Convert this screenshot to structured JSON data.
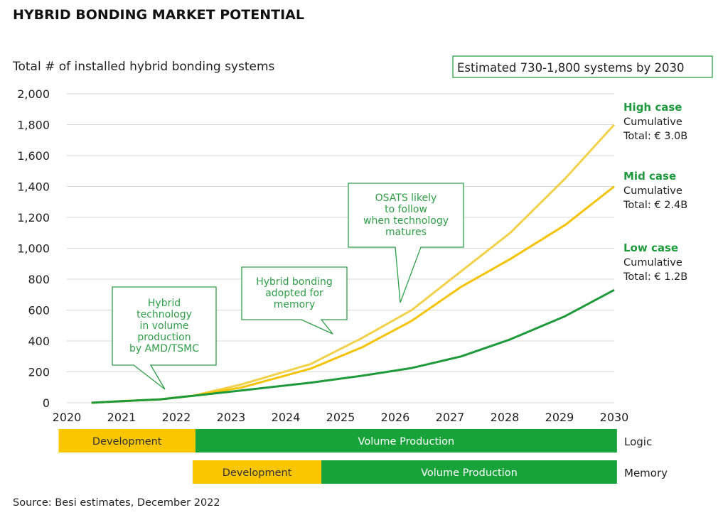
{
  "title": "HYBRID BONDING MARKET POTENTIAL",
  "source": "Source: Besi estimates, December 2022",
  "badge": "Estimated 730-1,800 systems by 2030",
  "colors": {
    "high": "#f2d14a",
    "mid": "#f4c300",
    "low": "#1e9a3a",
    "development": "#f9c600",
    "volume": "#18a33a",
    "note": "#2e9e47"
  },
  "chart_data": {
    "type": "line",
    "ylabel": "Total # of installed hybrid bonding systems",
    "xlim": [
      2020,
      2030
    ],
    "ylim": [
      0,
      2000
    ],
    "x_ticks": [
      "2020",
      "2021",
      "2022",
      "2023",
      "2024",
      "2025",
      "2026",
      "2027",
      "2028",
      "2029",
      "2030"
    ],
    "y_ticks": [
      "0",
      "200",
      "400",
      "600",
      "800",
      "1,000",
      "1,200",
      "1,400",
      "1,600",
      "1,800",
      "2,000"
    ],
    "grid": true,
    "series": [
      {
        "name": "High case",
        "x": [
          2020.45,
          2021,
          2021.7,
          2022.3,
          2023.2,
          2024.45,
          2025.4,
          2026.3,
          2027.2,
          2028.1,
          2029.1,
          2030
        ],
        "y": [
          0,
          10,
          22,
          45,
          120,
          250,
          420,
          600,
          850,
          1100,
          1450,
          1800
        ]
      },
      {
        "name": "Mid case",
        "x": [
          2020.45,
          2021,
          2021.7,
          2022.3,
          2023.2,
          2024.45,
          2025.4,
          2026.3,
          2027.2,
          2028.1,
          2029.1,
          2030
        ],
        "y": [
          0,
          10,
          22,
          45,
          100,
          220,
          360,
          530,
          750,
          930,
          1150,
          1400
        ]
      },
      {
        "name": "Low case",
        "x": [
          2020.45,
          2021,
          2021.7,
          2022.3,
          2023.2,
          2024.45,
          2025.4,
          2026.3,
          2027.2,
          2028.1,
          2029.1,
          2030
        ],
        "y": [
          0,
          10,
          22,
          45,
          80,
          130,
          175,
          225,
          300,
          410,
          560,
          730
        ]
      }
    ],
    "case_labels": [
      {
        "title": "High case",
        "line1": "Cumulative",
        "line2": "Total: € 3.0B"
      },
      {
        "title": "Mid case",
        "line1": "Cumulative",
        "line2": "Total: € 2.4B"
      },
      {
        "title": "Low case",
        "line1": "Cumulative",
        "line2": "Total: € 1.2B"
      }
    ],
    "annotations": [
      {
        "lines": [
          "Hybrid",
          "technology",
          "in volume",
          "production",
          "by AMD/TSMC"
        ],
        "x": 2021.9,
        "y": 80
      },
      {
        "lines": [
          "Hybrid bonding",
          "adopted for",
          "memory"
        ],
        "x": 2024.5,
        "y": 440
      },
      {
        "lines": [
          "OSATS likely",
          "to follow",
          "when technology",
          "matures"
        ],
        "x": 2026.1,
        "y": 650
      }
    ]
  },
  "phases": {
    "logic": {
      "label": "Logic",
      "bands": [
        {
          "type": "development",
          "text": "Development",
          "from": 2019.85,
          "to": 2022.35
        },
        {
          "type": "volume",
          "text": "Volume Production",
          "from": 2022.35,
          "to": 2030.05
        }
      ]
    },
    "memory": {
      "label": "Memory",
      "bands": [
        {
          "type": "development",
          "text": "Development",
          "from": 2022.3,
          "to": 2024.65
        },
        {
          "type": "volume",
          "text": "Volume Production",
          "from": 2024.65,
          "to": 2030.05
        }
      ]
    }
  }
}
